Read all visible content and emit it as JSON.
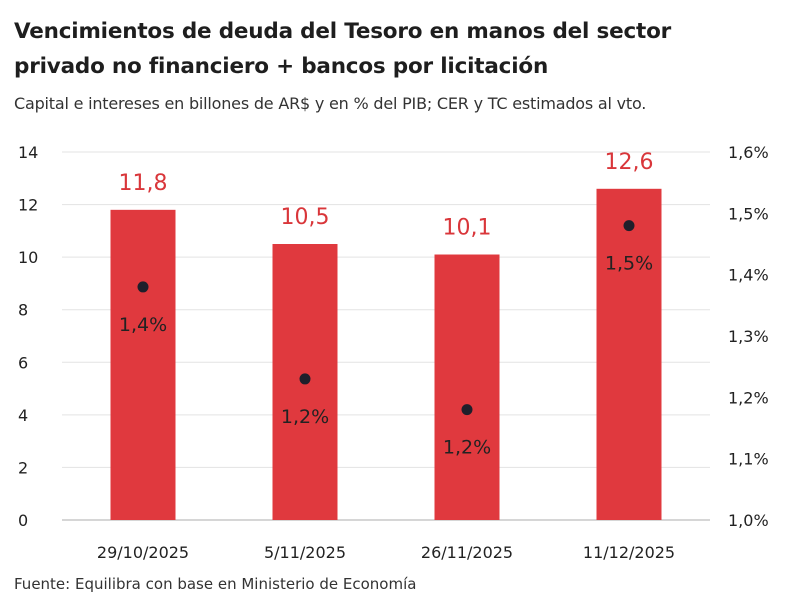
{
  "chart_data": {
    "type": "bar",
    "title_line1": "Vencimientos de deuda del Tesoro en manos del sector",
    "title_line2": "privado no financiero + bancos por licitación",
    "subtitle": "Capital e intereses en billones de AR$ y en % del PIB; CER y TC estimados al vto.",
    "source": "Fuente: Equilibra con base en Ministerio de Economía",
    "categories": [
      "29/10/2025",
      "5/11/2025",
      "26/11/2025",
      "11/12/2025"
    ],
    "series": [
      {
        "name": "Billones de AR$",
        "axis": "left",
        "type": "bar",
        "values": [
          11.8,
          10.5,
          10.1,
          12.6
        ],
        "labels": [
          "11,8",
          "10,5",
          "10,1",
          "12,6"
        ],
        "color": "#e0393e"
      },
      {
        "name": "% del PIB",
        "axis": "right",
        "type": "scatter",
        "values": [
          1.38,
          1.23,
          1.18,
          1.48
        ],
        "labels": [
          "1,4%",
          "1,2%",
          "1,2%",
          "1,5%"
        ],
        "color": "#1f1f2b"
      }
    ],
    "y_left": {
      "ylim": [
        0,
        14
      ],
      "ticks": [
        0,
        2,
        4,
        6,
        8,
        10,
        12,
        14
      ],
      "tick_labels": [
        "0",
        "2",
        "4",
        "6",
        "8",
        "10",
        "12",
        "14"
      ]
    },
    "y_right": {
      "ylim": [
        1.0,
        1.6
      ],
      "ticks": [
        1.0,
        1.1,
        1.2,
        1.3,
        1.4,
        1.5,
        1.6
      ],
      "tick_labels": [
        "1,0%",
        "1,1%",
        "1,2%",
        "1,3%",
        "1,4%",
        "1,5%",
        "1,6%"
      ]
    },
    "grid": true,
    "label_color": "#d9363a",
    "text_color": "#222222"
  }
}
